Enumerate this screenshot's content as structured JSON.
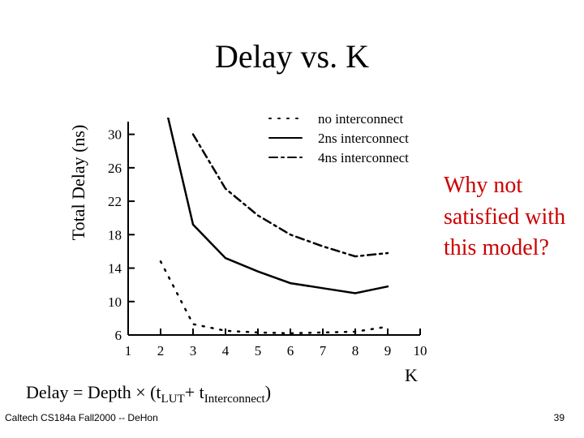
{
  "slide": {
    "title": "Delay vs. K",
    "callout": "Why not satisfied with this model?",
    "equation": {
      "lhs": "Delay = Depth × (t",
      "sub1": "LUT",
      "mid": "+ t",
      "sub2": "Interconnect",
      "rhs": ")"
    },
    "footer_left": "Caltech CS184a Fall2000 -- DeHon",
    "page_number": "39"
  },
  "chart_data": {
    "type": "line",
    "title": "",
    "xlabel": "K",
    "ylabel": "Total Delay (ns)",
    "xlim": [
      1,
      10
    ],
    "ylim": [
      6,
      32
    ],
    "x_ticks": [
      1,
      2,
      3,
      4,
      5,
      6,
      7,
      8,
      9,
      10
    ],
    "y_ticks": [
      6,
      10,
      14,
      18,
      22,
      26,
      30
    ],
    "legend_position": "top-right",
    "series": [
      {
        "name": "no interconnect",
        "style": "dotted",
        "x": [
          2,
          3,
          4,
          5,
          6,
          7,
          8,
          9
        ],
        "y": [
          14.8,
          7.3,
          6.5,
          6.3,
          6.2,
          6.3,
          6.4,
          7.0
        ]
      },
      {
        "name": "2ns interconnect",
        "style": "solid",
        "x": [
          2.2,
          3,
          4,
          5,
          6,
          7,
          8,
          9
        ],
        "y": [
          32.5,
          19.2,
          15.2,
          13.6,
          12.2,
          11.6,
          11.0,
          11.8
        ]
      },
      {
        "name": "4ns interconnect",
        "style": "dash-dot",
        "x": [
          3,
          4,
          5,
          6,
          7,
          8,
          9
        ],
        "y": [
          30.0,
          23.5,
          20.3,
          18.0,
          16.6,
          15.4,
          15.8
        ]
      }
    ]
  }
}
